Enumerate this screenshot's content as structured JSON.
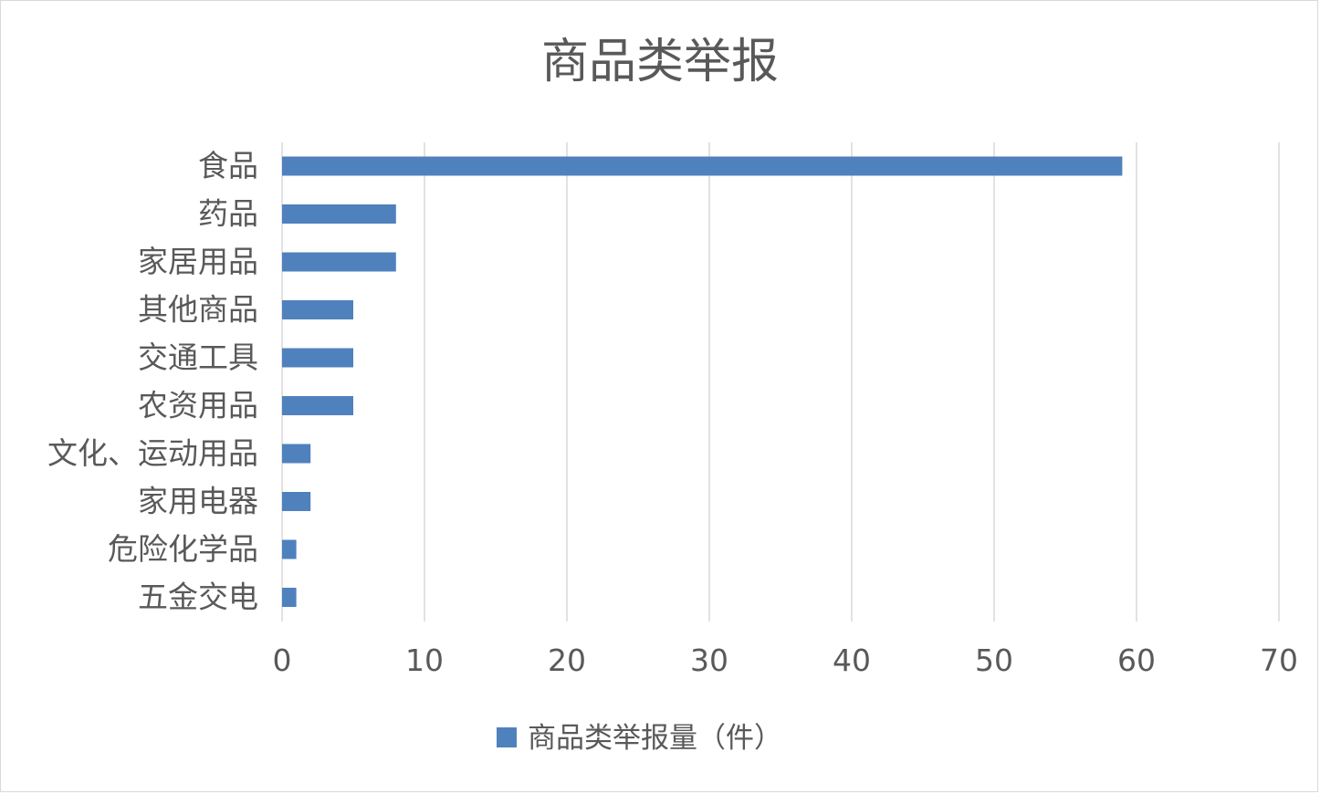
{
  "chart_data": {
    "type": "bar",
    "orientation": "horizontal",
    "title": "商品类举报",
    "categories": [
      "食品",
      "药品",
      "家居用品",
      "其他商品",
      "交通工具",
      "农资用品",
      "文化、运动用品",
      "家用电器",
      "危险化学品",
      "五金交电"
    ],
    "series": [
      {
        "name": "商品类举报量（件）",
        "values": [
          59,
          8,
          8,
          5,
          5,
          5,
          2,
          2,
          1,
          1
        ],
        "color": "#4f81bd"
      }
    ],
    "xlim": [
      0,
      70
    ],
    "xticks": [
      0,
      10,
      20,
      30,
      40,
      50,
      60,
      70
    ],
    "grid": "vertical",
    "legend": "bottom"
  }
}
